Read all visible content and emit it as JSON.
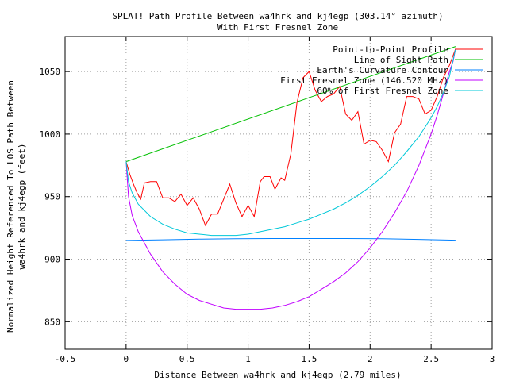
{
  "chart_data": {
    "type": "line",
    "title": "SPLAT! Path Profile Between wa4hrk and kj4egp (303.14° azimuth)",
    "subtitle": "With First Fresnel Zone",
    "xlabel": "Distance Between wa4hrk and kj4egp (2.79 miles)",
    "ylabel_line1": "Normalized Height Referenced To LOS Path Between",
    "ylabel_line2": "wa4hrk and kj4egp (feet)",
    "xlim": [
      -0.5,
      3
    ],
    "ylim": [
      828,
      1078
    ],
    "xticks": [
      -0.5,
      0,
      0.5,
      1,
      1.5,
      2,
      2.5,
      3
    ],
    "xtick_labels": [
      "-0.5",
      "0",
      "0.5",
      "1",
      "1.5",
      "2",
      "2.5",
      "3"
    ],
    "yticks": [
      850,
      900,
      950,
      1000,
      1050
    ],
    "ytick_labels": [
      "850",
      "900",
      "950",
      "1000",
      "1050"
    ],
    "grid": true,
    "legend_position": "top-right",
    "series": [
      {
        "name": "Point-to-Point Profile",
        "color": "#ff0000",
        "points": [
          [
            0,
            978
          ],
          [
            0.03,
            968
          ],
          [
            0.06,
            960
          ],
          [
            0.09,
            953
          ],
          [
            0.12,
            948
          ],
          [
            0.15,
            961
          ],
          [
            0.2,
            962
          ],
          [
            0.25,
            962
          ],
          [
            0.3,
            949
          ],
          [
            0.35,
            949
          ],
          [
            0.4,
            946
          ],
          [
            0.45,
            952
          ],
          [
            0.5,
            943
          ],
          [
            0.55,
            949
          ],
          [
            0.6,
            940
          ],
          [
            0.65,
            927
          ],
          [
            0.7,
            936
          ],
          [
            0.75,
            936
          ],
          [
            0.8,
            948
          ],
          [
            0.85,
            960
          ],
          [
            0.9,
            945
          ],
          [
            0.95,
            934
          ],
          [
            1.0,
            943
          ],
          [
            1.05,
            934
          ],
          [
            1.1,
            962
          ],
          [
            1.13,
            966
          ],
          [
            1.18,
            966
          ],
          [
            1.22,
            956
          ],
          [
            1.27,
            965
          ],
          [
            1.3,
            963
          ],
          [
            1.35,
            984
          ],
          [
            1.4,
            1025
          ],
          [
            1.45,
            1045
          ],
          [
            1.5,
            1050
          ],
          [
            1.55,
            1035
          ],
          [
            1.6,
            1026
          ],
          [
            1.65,
            1030
          ],
          [
            1.7,
            1032
          ],
          [
            1.75,
            1038
          ],
          [
            1.8,
            1016
          ],
          [
            1.85,
            1011
          ],
          [
            1.9,
            1018
          ],
          [
            1.95,
            992
          ],
          [
            2.0,
            995
          ],
          [
            2.05,
            994
          ],
          [
            2.1,
            987
          ],
          [
            2.15,
            978
          ],
          [
            2.2,
            1001
          ],
          [
            2.25,
            1008
          ],
          [
            2.3,
            1030
          ],
          [
            2.35,
            1030
          ],
          [
            2.4,
            1028
          ],
          [
            2.45,
            1016
          ],
          [
            2.5,
            1019
          ],
          [
            2.55,
            1030
          ],
          [
            2.6,
            1045
          ],
          [
            2.65,
            1055
          ],
          [
            2.7,
            1068
          ]
        ]
      },
      {
        "name": "Line of Sight Path",
        "color": "#00c000",
        "points": [
          [
            0,
            978
          ],
          [
            2.7,
            1070
          ]
        ]
      },
      {
        "name": "Earth's Curvature Contour",
        "color": "#0080ff",
        "points": [
          [
            0,
            915
          ],
          [
            0.3,
            915.5
          ],
          [
            0.6,
            916
          ],
          [
            0.9,
            916.3
          ],
          [
            1.2,
            916.5
          ],
          [
            1.5,
            916.5
          ],
          [
            1.8,
            916.5
          ],
          [
            2.1,
            916.3
          ],
          [
            2.4,
            915.8
          ],
          [
            2.7,
            915.2
          ]
        ]
      },
      {
        "name": "First Fresnel Zone (146.520 MHz)",
        "color": "#c000ff",
        "points": [
          [
            0,
            978
          ],
          [
            0.02,
            950
          ],
          [
            0.05,
            935
          ],
          [
            0.1,
            922
          ],
          [
            0.2,
            904
          ],
          [
            0.3,
            890
          ],
          [
            0.4,
            880
          ],
          [
            0.5,
            872
          ],
          [
            0.6,
            867
          ],
          [
            0.7,
            864
          ],
          [
            0.8,
            861
          ],
          [
            0.9,
            860
          ],
          [
            1.0,
            860
          ],
          [
            1.1,
            860
          ],
          [
            1.2,
            861
          ],
          [
            1.3,
            863
          ],
          [
            1.4,
            866
          ],
          [
            1.5,
            870
          ],
          [
            1.6,
            876
          ],
          [
            1.7,
            882
          ],
          [
            1.8,
            889
          ],
          [
            1.9,
            898
          ],
          [
            2.0,
            909
          ],
          [
            2.1,
            922
          ],
          [
            2.2,
            937
          ],
          [
            2.3,
            954
          ],
          [
            2.4,
            975
          ],
          [
            2.5,
            1000
          ],
          [
            2.55,
            1015
          ],
          [
            2.6,
            1032
          ],
          [
            2.65,
            1050
          ],
          [
            2.68,
            1058
          ],
          [
            2.7,
            1068
          ]
        ]
      },
      {
        "name": "60% of First Fresnel Zone",
        "color": "#00c8d8",
        "points": [
          [
            0,
            978
          ],
          [
            0.02,
            962
          ],
          [
            0.05,
            953
          ],
          [
            0.1,
            944
          ],
          [
            0.2,
            934
          ],
          [
            0.3,
            928
          ],
          [
            0.4,
            924
          ],
          [
            0.5,
            921
          ],
          [
            0.6,
            920
          ],
          [
            0.7,
            919
          ],
          [
            0.8,
            919
          ],
          [
            0.9,
            919
          ],
          [
            1.0,
            920
          ],
          [
            1.1,
            922
          ],
          [
            1.2,
            924
          ],
          [
            1.3,
            926
          ],
          [
            1.4,
            929
          ],
          [
            1.5,
            932
          ],
          [
            1.6,
            936
          ],
          [
            1.7,
            940
          ],
          [
            1.8,
            945
          ],
          [
            1.9,
            951
          ],
          [
            2.0,
            958
          ],
          [
            2.1,
            966
          ],
          [
            2.2,
            975
          ],
          [
            2.3,
            986
          ],
          [
            2.4,
            998
          ],
          [
            2.5,
            1013
          ],
          [
            2.55,
            1022
          ],
          [
            2.6,
            1033
          ],
          [
            2.65,
            1046
          ],
          [
            2.7,
            1068
          ]
        ]
      }
    ]
  }
}
